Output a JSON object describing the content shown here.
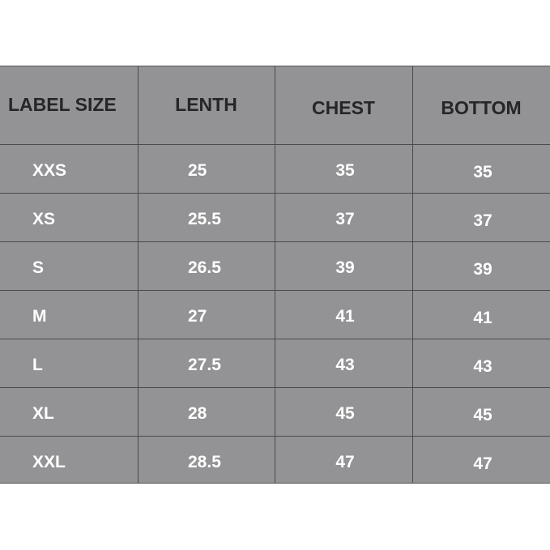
{
  "table": {
    "headers": [
      "LABEL SIZE",
      "LENTH",
      "CHEST",
      "BOTTOM"
    ],
    "rows": [
      [
        "XXS",
        "25",
        "35",
        "35"
      ],
      [
        "XS",
        "25.5",
        "37",
        "37"
      ],
      [
        "S",
        "26.5",
        "39",
        "39"
      ],
      [
        "M",
        "27",
        "41",
        "41"
      ],
      [
        "L",
        "27.5",
        "43",
        "43"
      ],
      [
        "XL",
        "28",
        "45",
        "45"
      ],
      [
        "XXL",
        "28.5",
        "47",
        "47"
      ]
    ]
  },
  "colors": {
    "cell_background": "#939396",
    "header_text": "#262628",
    "body_text": "#ffffff"
  }
}
